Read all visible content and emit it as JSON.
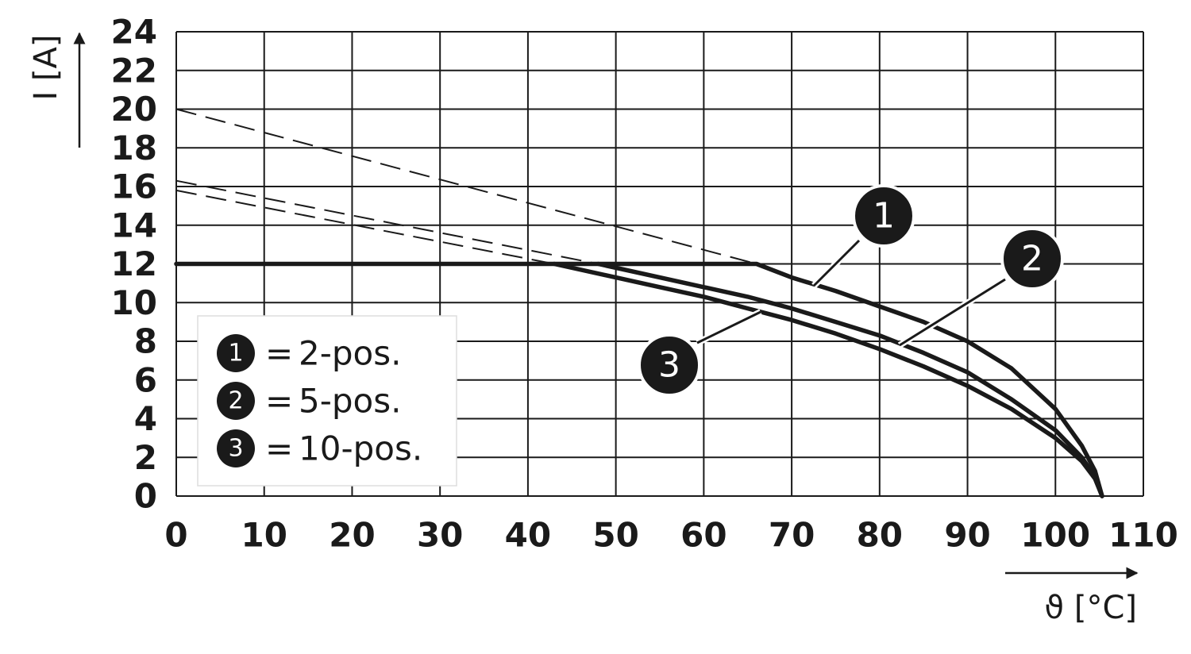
{
  "chart_data": {
    "type": "line",
    "x_label": "ϑ [°C]",
    "y_label": "I [A]",
    "xlim": [
      0,
      110
    ],
    "ylim": [
      0,
      24
    ],
    "xticks": [
      0,
      10,
      20,
      30,
      40,
      50,
      60,
      70,
      80,
      90,
      100,
      110
    ],
    "yticks": [
      0,
      2,
      4,
      6,
      8,
      10,
      12,
      14,
      16,
      18,
      20,
      22,
      24
    ],
    "grid": true,
    "legend_separator": "=",
    "series": [
      {
        "label": "1",
        "name": "2-pos.",
        "color": "#1a1a1a",
        "x": [
          0,
          66,
          70,
          75,
          80,
          85,
          90,
          95,
          100,
          103,
          104.5,
          105.3
        ],
        "values": [
          12,
          12,
          11.3,
          10.6,
          9.8,
          9.0,
          8.0,
          6.6,
          4.5,
          2.6,
          1.3,
          0
        ],
        "extension": {
          "x": [
            0,
            66
          ],
          "values": [
            20,
            12
          ]
        }
      },
      {
        "label": "2",
        "name": "5-pos.",
        "color": "#1a1a1a",
        "x": [
          48,
          55,
          60,
          65,
          70,
          75,
          80,
          85,
          90,
          95,
          100,
          103,
          104.5,
          105.3
        ],
        "values": [
          12,
          11.3,
          10.8,
          10.3,
          9.7,
          9.0,
          8.3,
          7.4,
          6.4,
          5.0,
          3.4,
          2.0,
          1.0,
          0
        ],
        "extension": {
          "x": [
            0,
            48
          ],
          "values": [
            16.3,
            12
          ]
        }
      },
      {
        "label": "3",
        "name": "10-pos.",
        "color": "#1a1a1a",
        "x": [
          43,
          50,
          55,
          60,
          65,
          70,
          75,
          80,
          85,
          90,
          95,
          100,
          103,
          104.5,
          105.3
        ],
        "values": [
          12,
          11.3,
          10.8,
          10.3,
          9.7,
          9.1,
          8.4,
          7.6,
          6.7,
          5.7,
          4.5,
          3.0,
          1.8,
          0.9,
          0
        ],
        "extension": {
          "x": [
            0,
            43
          ],
          "values": [
            15.8,
            12
          ]
        }
      }
    ]
  }
}
